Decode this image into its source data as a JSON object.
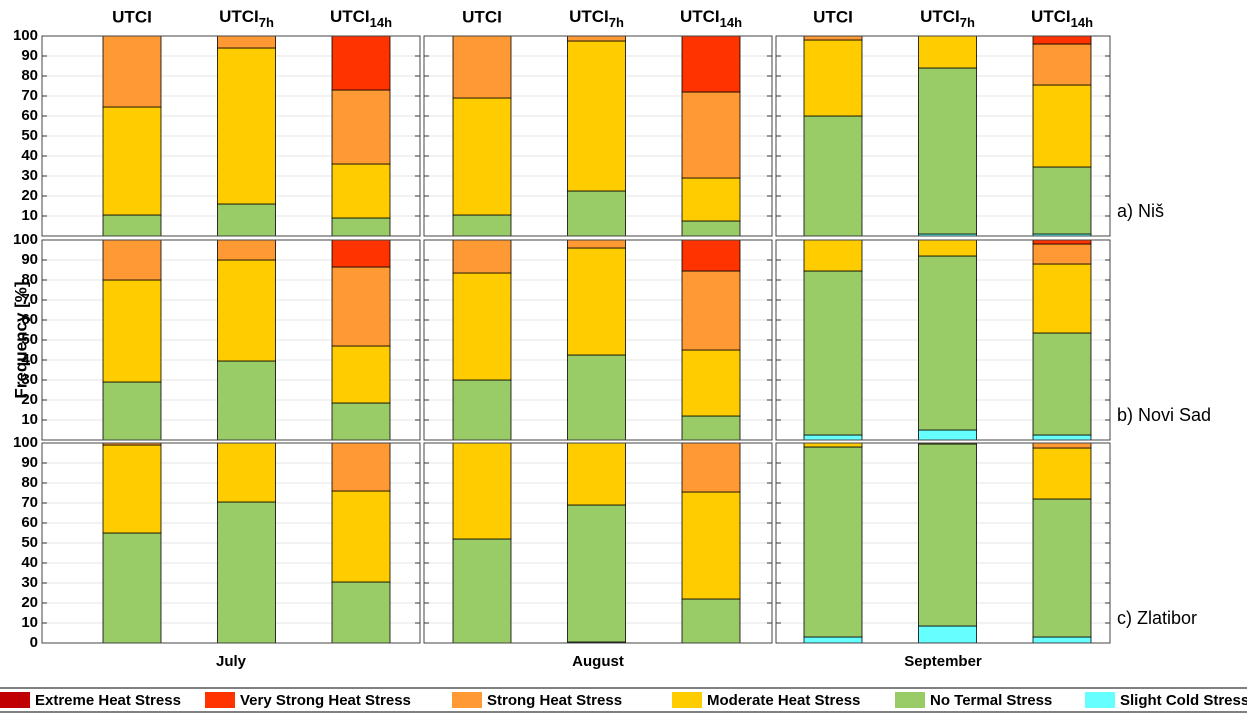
{
  "chart_data": {
    "type": "bar",
    "stacked": true,
    "ylabel": "Frequency [%]",
    "categories": [
      "UTCI",
      "UTCI7h",
      "UTCI14h"
    ],
    "columns": [
      "July",
      "August",
      "September"
    ],
    "rows": [
      "a) Niš",
      "b) Novi Sad",
      "c) Zlatibor"
    ],
    "ylim": [
      0,
      100
    ],
    "yticks": [
      0,
      10,
      20,
      30,
      40,
      50,
      60,
      70,
      80,
      90,
      100
    ],
    "grid": true,
    "series": [
      {
        "name": "Extreme Heat Stress",
        "color": "#c00000"
      },
      {
        "name": "Very Strong Heat Stress",
        "color": "#ff3300"
      },
      {
        "name": "Strong Heat Stress",
        "color": "#ff9933"
      },
      {
        "name": "Moderate Heat Stress",
        "color": "#ffcc00"
      },
      {
        "name": "No Termal Stress",
        "color": "#99cc66"
      },
      {
        "name": "Slight Cold Stress",
        "color": "#66ffff"
      }
    ],
    "panels": [
      {
        "values": [
          [
            0,
            0,
            0
          ],
          [
            0,
            0,
            27
          ],
          [
            35.5,
            6,
            37
          ],
          [
            54,
            78,
            27
          ],
          [
            10.5,
            16,
            9
          ],
          [
            0,
            0,
            0
          ]
        ]
      },
      {
        "values": [
          [
            0,
            0,
            0
          ],
          [
            0,
            0,
            28
          ],
          [
            31,
            2.5,
            43
          ],
          [
            58.5,
            75,
            21.5
          ],
          [
            10.5,
            22.5,
            7.5
          ],
          [
            0,
            0,
            0
          ]
        ]
      },
      {
        "values": [
          [
            0,
            0,
            0
          ],
          [
            0,
            0,
            4
          ],
          [
            2,
            0,
            20.5
          ],
          [
            38,
            16,
            41
          ],
          [
            60,
            83,
            33.5
          ],
          [
            0,
            1,
            1
          ]
        ]
      },
      {
        "values": [
          [
            0,
            0,
            0
          ],
          [
            0,
            0,
            13.5
          ],
          [
            20,
            10,
            39.5
          ],
          [
            51,
            50.5,
            28.5
          ],
          [
            29,
            39.5,
            18.5
          ],
          [
            0,
            0,
            0
          ]
        ]
      },
      {
        "values": [
          [
            0,
            0,
            0
          ],
          [
            0,
            0,
            15.5
          ],
          [
            16.5,
            4,
            39.5
          ],
          [
            53.5,
            53.5,
            33
          ],
          [
            30,
            42.5,
            12
          ],
          [
            0,
            0,
            0
          ]
        ]
      },
      {
        "values": [
          [
            0,
            0,
            0
          ],
          [
            0,
            0,
            2
          ],
          [
            0,
            0,
            10
          ],
          [
            15.5,
            8,
            34.5
          ],
          [
            82,
            87,
            51
          ],
          [
            2.5,
            5,
            2.5
          ]
        ]
      },
      {
        "values": [
          [
            0,
            0,
            0
          ],
          [
            0,
            0,
            0
          ],
          [
            1,
            0,
            24
          ],
          [
            44,
            29.5,
            45.5
          ],
          [
            55,
            70.5,
            30.5
          ],
          [
            0,
            0,
            0
          ]
        ]
      },
      {
        "values": [
          [
            0,
            0,
            0
          ],
          [
            0,
            0,
            0
          ],
          [
            0,
            0,
            24.5
          ],
          [
            48,
            31,
            53.5
          ],
          [
            52,
            68.5,
            22
          ],
          [
            0,
            0.5,
            0
          ]
        ]
      },
      {
        "values": [
          [
            0,
            0,
            0
          ],
          [
            0,
            0,
            0
          ],
          [
            0,
            0,
            2.5
          ],
          [
            2,
            0.5,
            25.5
          ],
          [
            95,
            91,
            69
          ],
          [
            3,
            8.5,
            3
          ]
        ]
      }
    ]
  }
}
